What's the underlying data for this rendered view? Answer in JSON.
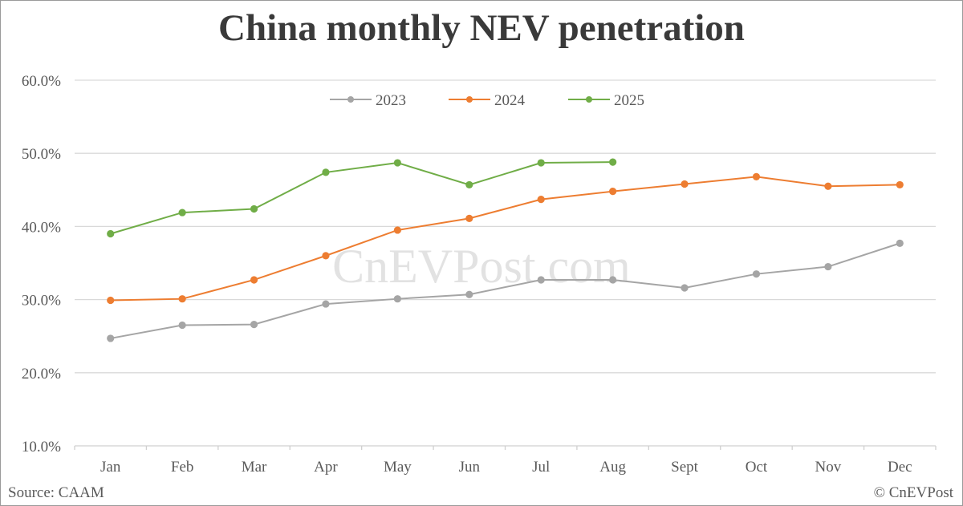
{
  "chart_data": {
    "type": "line",
    "title": "China monthly NEV penetration",
    "xlabel": "",
    "ylabel": "",
    "categories": [
      "Jan",
      "Feb",
      "Mar",
      "Apr",
      "May",
      "Jun",
      "Jul",
      "Aug",
      "Sept",
      "Oct",
      "Nov",
      "Dec"
    ],
    "yticks": [
      "10.0%",
      "20.0%",
      "30.0%",
      "40.0%",
      "50.0%",
      "60.0%"
    ],
    "ylim": [
      10,
      60
    ],
    "grid": true,
    "legend_position": "top",
    "series": [
      {
        "name": "2023",
        "color": "#a5a5a5",
        "values": [
          24.7,
          26.5,
          26.6,
          29.4,
          30.1,
          30.7,
          32.7,
          32.7,
          31.6,
          33.5,
          34.5,
          37.7
        ]
      },
      {
        "name": "2024",
        "color": "#ed7d31",
        "values": [
          29.9,
          30.1,
          32.7,
          36.0,
          39.5,
          41.1,
          43.7,
          44.8,
          45.8,
          46.8,
          45.5,
          45.7
        ]
      },
      {
        "name": "2025",
        "color": "#70ad47",
        "values": [
          39.0,
          41.9,
          42.4,
          47.4,
          48.7,
          45.7,
          48.7,
          48.8
        ]
      }
    ],
    "watermark": "CnEVPost.com"
  },
  "footer": {
    "source": "Source: CAAM",
    "copyright": "© CnEVPost"
  }
}
